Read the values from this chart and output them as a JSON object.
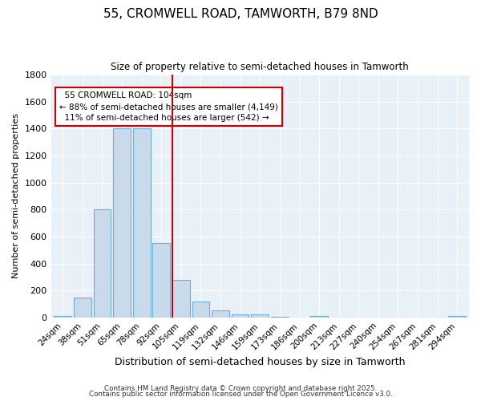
{
  "title_line1": "55, CROMWELL ROAD, TAMWORTH, B79 8ND",
  "title_line2": "Size of property relative to semi-detached houses in Tamworth",
  "xlabel": "Distribution of semi-detached houses by size in Tamworth",
  "ylabel": "Number of semi-detached properties",
  "bar_color": "#c9daea",
  "bar_edge_color": "#6baed6",
  "annotation_line_color": "#cc0000",
  "background_color": "#ffffff",
  "plot_bg_color": "#e8f0f8",
  "grid_color": "#ffffff",
  "categories": [
    "24sqm",
    "38sqm",
    "51sqm",
    "65sqm",
    "78sqm",
    "92sqm",
    "105sqm",
    "119sqm",
    "132sqm",
    "146sqm",
    "159sqm",
    "173sqm",
    "186sqm",
    "200sqm",
    "213sqm",
    "227sqm",
    "240sqm",
    "254sqm",
    "267sqm",
    "281sqm",
    "294sqm"
  ],
  "values": [
    10,
    150,
    800,
    1400,
    1400,
    550,
    280,
    120,
    50,
    25,
    20,
    5,
    0,
    10,
    0,
    0,
    0,
    0,
    0,
    0,
    10
  ],
  "property_label": "55 CROMWELL ROAD: 104sqm",
  "smaller_pct": 88,
  "smaller_count": 4149,
  "larger_pct": 11,
  "larger_count": 542,
  "annotation_box_color": "#ffffff",
  "annotation_box_edge": "#cc0000",
  "ylim": [
    0,
    1800
  ],
  "yticks": [
    0,
    200,
    400,
    600,
    800,
    1000,
    1200,
    1400,
    1600,
    1800
  ],
  "red_line_index": 6,
  "footnote1": "Contains HM Land Registry data © Crown copyright and database right 2025.",
  "footnote2": "Contains public sector information licensed under the Open Government Licence v3.0."
}
